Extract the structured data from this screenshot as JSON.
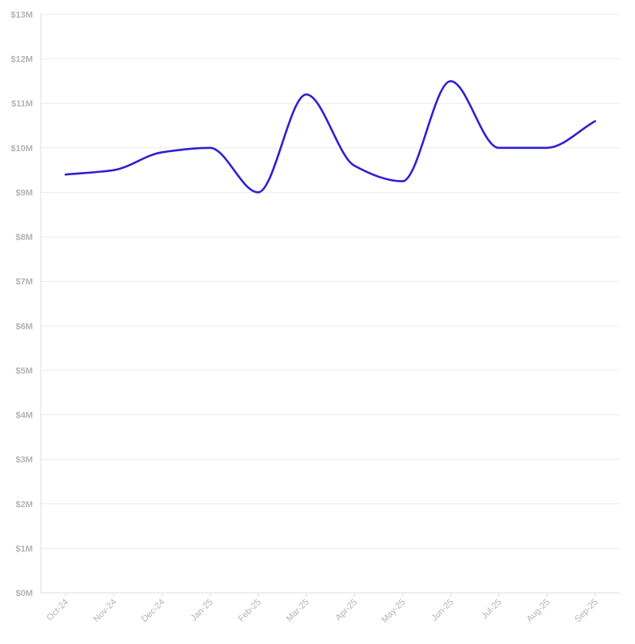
{
  "chart_data": {
    "type": "line",
    "title": "",
    "xlabel": "",
    "ylabel": "",
    "categories": [
      "Oct-24",
      "Nov-24",
      "Dec-24",
      "Jan-25",
      "Feb-25",
      "Mar-25",
      "Apr-25",
      "May-25",
      "Jun-25",
      "Jul-25",
      "Aug-25",
      "Sep-25"
    ],
    "series": [
      {
        "values": [
          9.4,
          9.5,
          9.9,
          10.0,
          9.0,
          11.2,
          9.6,
          9.25,
          11.5,
          10.0,
          10.0,
          10.6
        ],
        "color": "#2f1fd1"
      }
    ],
    "ylim": [
      0,
      13
    ],
    "y_unit": "millions USD",
    "y_ticks": [
      0,
      1,
      2,
      3,
      4,
      5,
      6,
      7,
      8,
      9,
      10,
      11,
      12,
      13
    ],
    "y_tick_labels": [
      "$0M",
      "$1M",
      "$2M",
      "$3M",
      "$4M",
      "$5M",
      "$6M",
      "$7M",
      "$8M",
      "$9M",
      "$10M",
      "$11M",
      "$12M",
      "$13M"
    ],
    "grid": true,
    "legend": "none",
    "smooth": true,
    "x_tick_rotation_deg": -45
  }
}
